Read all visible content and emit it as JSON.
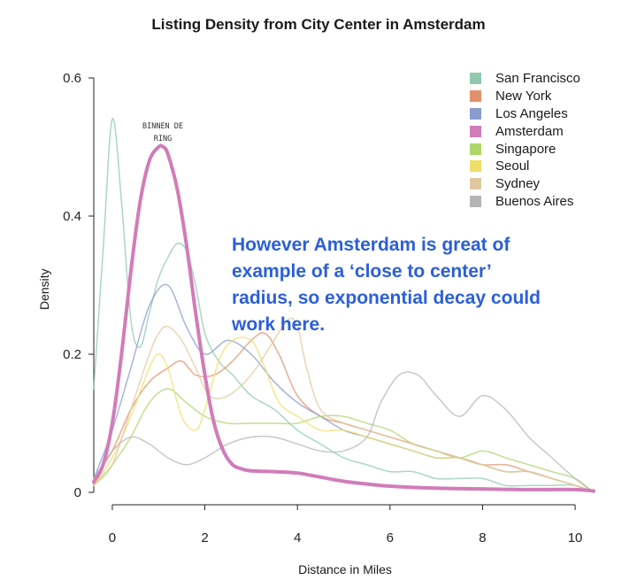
{
  "chart_data": {
    "type": "line",
    "title": "Listing Density from City Center in Amsterdam",
    "xlabel": "Distance in Miles",
    "ylabel": "Density",
    "xlim": [
      -0.4,
      10.4
    ],
    "ylim": [
      0,
      0.6
    ],
    "xticks": [
      "0",
      "2",
      "4",
      "6",
      "8",
      "10"
    ],
    "yticks": [
      "0",
      "0.2",
      "0.4",
      "0.6"
    ],
    "grid": false,
    "legend_position": "top-right",
    "annotation": "However Amsterdam is great of\nexample of a ‘close to center’\nradius, so exponential decay could\nwork here.",
    "peak_label": "BINNEN DE\nRING",
    "series": [
      {
        "name": "San Francisco",
        "color": "#8fc9b0",
        "x": [
          -0.4,
          -0.2,
          0,
          0.2,
          0.4,
          0.6,
          0.8,
          1.0,
          1.2,
          1.4,
          1.6,
          1.8,
          2.0,
          2.3,
          2.6,
          3.0,
          3.5,
          4.0,
          4.5,
          5.0,
          5.5,
          6.0,
          6.5,
          7.0,
          7.5,
          8.0,
          8.5,
          9.0,
          9.5,
          10.0,
          10.4
        ],
        "y": [
          0.15,
          0.35,
          0.54,
          0.42,
          0.25,
          0.21,
          0.26,
          0.31,
          0.34,
          0.36,
          0.35,
          0.3,
          0.23,
          0.19,
          0.17,
          0.14,
          0.12,
          0.09,
          0.07,
          0.05,
          0.04,
          0.03,
          0.03,
          0.02,
          0.02,
          0.02,
          0.01,
          0.01,
          0.01,
          0.01,
          0.0
        ]
      },
      {
        "name": "New York",
        "color": "#e0906a",
        "x": [
          -0.4,
          0,
          0.4,
          0.8,
          1.2,
          1.5,
          1.8,
          2.2,
          2.6,
          3.0,
          3.3,
          3.6,
          4.0,
          4.5,
          5.0,
          5.5,
          6.0,
          6.5,
          7.0,
          7.5,
          8.0,
          8.5,
          9.0,
          9.5,
          10.0,
          10.4
        ],
        "y": [
          0.02,
          0.06,
          0.12,
          0.16,
          0.18,
          0.19,
          0.17,
          0.17,
          0.19,
          0.22,
          0.23,
          0.2,
          0.14,
          0.11,
          0.1,
          0.09,
          0.08,
          0.07,
          0.06,
          0.05,
          0.04,
          0.04,
          0.03,
          0.02,
          0.01,
          0.0
        ]
      },
      {
        "name": "Los Angeles",
        "color": "#8a9ccf",
        "x": [
          -0.4,
          0,
          0.4,
          0.8,
          1.2,
          1.6,
          2.0,
          2.5,
          3.0,
          3.5,
          4.0,
          4.5,
          5.0,
          5.5,
          6.0,
          6.5,
          7.0,
          7.5,
          8.0,
          8.5,
          9.0,
          9.5,
          10.0,
          10.4
        ],
        "y": [
          0.02,
          0.09,
          0.18,
          0.27,
          0.3,
          0.24,
          0.2,
          0.22,
          0.2,
          0.16,
          0.13,
          0.11,
          0.09,
          0.08,
          0.07,
          0.06,
          0.05,
          0.05,
          0.04,
          0.03,
          0.03,
          0.02,
          0.01,
          0.0
        ]
      },
      {
        "name": "Amsterdam",
        "color": "#d17cb9",
        "x": [
          -0.4,
          -0.2,
          0,
          0.2,
          0.4,
          0.6,
          0.8,
          1.0,
          1.1,
          1.2,
          1.4,
          1.6,
          1.8,
          2.0,
          2.2,
          2.4,
          2.6,
          2.8,
          3.0,
          3.5,
          4.0,
          4.5,
          5.0,
          5.5,
          6.0,
          7.0,
          8.0,
          9.0,
          10.0,
          10.4
        ],
        "y": [
          0.015,
          0.04,
          0.1,
          0.2,
          0.32,
          0.42,
          0.48,
          0.5,
          0.5,
          0.49,
          0.44,
          0.36,
          0.26,
          0.17,
          0.1,
          0.06,
          0.04,
          0.034,
          0.031,
          0.03,
          0.028,
          0.022,
          0.016,
          0.012,
          0.009,
          0.006,
          0.005,
          0.004,
          0.004,
          0.002
        ]
      },
      {
        "name": "Singapore",
        "color": "#aed66a",
        "x": [
          -0.4,
          0,
          0.4,
          0.8,
          1.2,
          1.6,
          2.0,
          2.5,
          3.0,
          3.5,
          4.0,
          4.5,
          5.0,
          5.5,
          6.0,
          6.5,
          7.0,
          7.5,
          8.0,
          8.5,
          9.0,
          9.5,
          10.0,
          10.4
        ],
        "y": [
          0.01,
          0.04,
          0.08,
          0.13,
          0.15,
          0.13,
          0.11,
          0.1,
          0.1,
          0.1,
          0.1,
          0.11,
          0.11,
          0.1,
          0.09,
          0.07,
          0.06,
          0.05,
          0.06,
          0.05,
          0.04,
          0.03,
          0.02,
          0.0
        ]
      },
      {
        "name": "Seoul",
        "color": "#f1dd6a",
        "x": [
          -0.4,
          0,
          0.4,
          0.8,
          1.0,
          1.2,
          1.5,
          1.8,
          2.0,
          2.3,
          2.6,
          3.0,
          3.3,
          3.6,
          4.0,
          4.5,
          5.0,
          5.5,
          6.0,
          6.5,
          7.0,
          7.5,
          8.0,
          8.5,
          9.0,
          9.5,
          10.0,
          10.4
        ],
        "y": [
          0.01,
          0.05,
          0.11,
          0.18,
          0.2,
          0.18,
          0.11,
          0.09,
          0.12,
          0.19,
          0.22,
          0.22,
          0.18,
          0.13,
          0.11,
          0.09,
          0.09,
          0.08,
          0.07,
          0.06,
          0.05,
          0.05,
          0.04,
          0.03,
          0.03,
          0.02,
          0.01,
          0.0
        ]
      },
      {
        "name": "Sydney",
        "color": "#e0c8a0",
        "x": [
          -0.4,
          0,
          0.4,
          0.8,
          1.0,
          1.2,
          1.5,
          1.8,
          2.1,
          2.5,
          3.0,
          3.4,
          3.8,
          4.0,
          4.2,
          4.5,
          5.0,
          5.5,
          6.0,
          6.5,
          7.0,
          7.5,
          8.0,
          8.5,
          9.0,
          9.5,
          10.0,
          10.4
        ],
        "y": [
          0.01,
          0.04,
          0.12,
          0.2,
          0.23,
          0.24,
          0.22,
          0.18,
          0.14,
          0.14,
          0.17,
          0.21,
          0.25,
          0.24,
          0.18,
          0.12,
          0.1,
          0.09,
          0.08,
          0.07,
          0.06,
          0.05,
          0.04,
          0.03,
          0.03,
          0.02,
          0.01,
          0.0
        ]
      },
      {
        "name": "Buenos Aires",
        "color": "#b5b5b5",
        "x": [
          -0.4,
          0,
          0.4,
          0.8,
          1.2,
          1.6,
          2.0,
          2.5,
          3.0,
          3.5,
          4.0,
          4.5,
          5.0,
          5.5,
          5.8,
          6.2,
          6.6,
          7.0,
          7.5,
          8.0,
          8.5,
          9.0,
          9.5,
          10.0,
          10.4
        ],
        "y": [
          0.02,
          0.06,
          0.08,
          0.07,
          0.05,
          0.04,
          0.05,
          0.07,
          0.08,
          0.08,
          0.07,
          0.06,
          0.06,
          0.08,
          0.13,
          0.17,
          0.17,
          0.14,
          0.11,
          0.14,
          0.12,
          0.08,
          0.05,
          0.02,
          0.0
        ]
      }
    ]
  }
}
